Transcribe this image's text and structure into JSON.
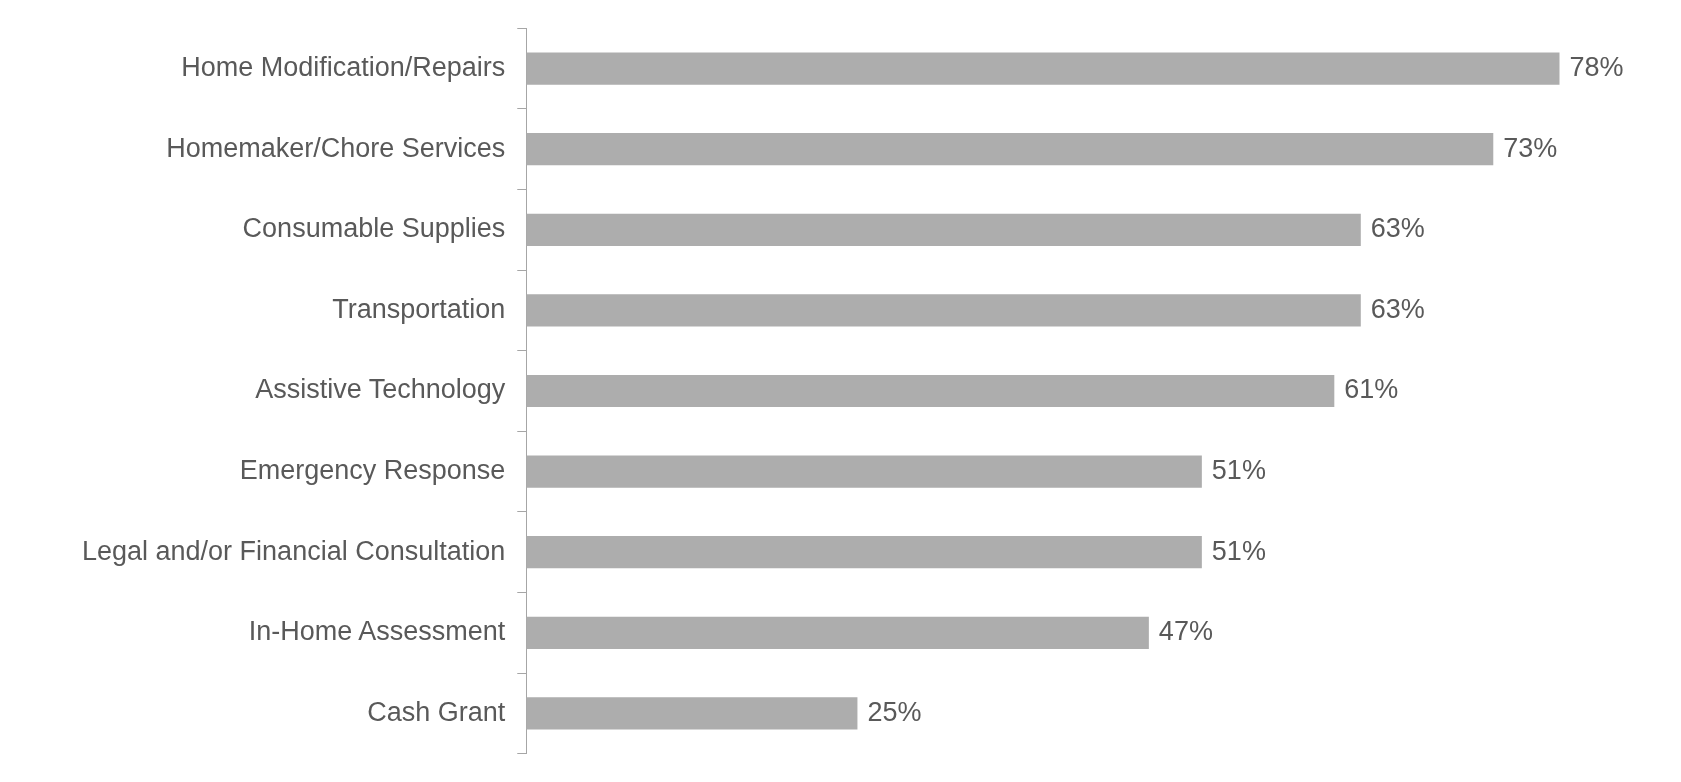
{
  "chart_data": {
    "type": "bar",
    "orientation": "horizontal",
    "categories": [
      "Home Modification/Repairs",
      "Homemaker/Chore Services",
      "Consumable Supplies",
      "Transportation",
      "Assistive Technology",
      "Emergency Response",
      "Legal and/or Financial Consultation",
      "In-Home Assessment",
      "Cash Grant"
    ],
    "values": [
      78,
      73,
      63,
      63,
      61,
      51,
      51,
      47,
      25
    ],
    "value_labels": [
      "78%",
      "73%",
      "63%",
      "63%",
      "61%",
      "51%",
      "51%",
      "47%",
      "25%"
    ],
    "color": "#adadad",
    "tick_labels": "y"
  }
}
